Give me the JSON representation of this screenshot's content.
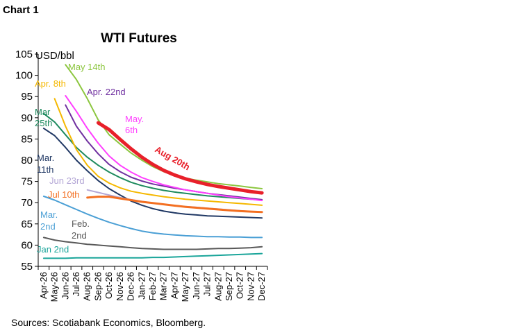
{
  "page": {
    "label": "Chart 1",
    "source": "Sources: Scotiabank Economics, Bloomberg."
  },
  "chart_data": {
    "type": "line",
    "title": "WTI Futures",
    "ylabel": "USD/bbl",
    "xlabel": "",
    "ylim": [
      55,
      105
    ],
    "yticks": [
      55,
      60,
      65,
      70,
      75,
      80,
      85,
      90,
      95,
      100,
      105
    ],
    "categories": [
      "Apr-26",
      "May-26",
      "Jun-26",
      "Jul-26",
      "Aug-26",
      "Sep-26",
      "Oct-26",
      "Nov-26",
      "Dec-26",
      "Jan-27",
      "Feb-27",
      "Mar-27",
      "Apr-27",
      "May-27",
      "Jun-27",
      "Jul-27",
      "Aug-27",
      "Sep-27",
      "Oct-27",
      "Nov-27",
      "Dec-27"
    ],
    "grid": false,
    "legend": "direct labels",
    "series": [
      {
        "name": "Jan 2nd",
        "color": "#1aa59a",
        "width": 2,
        "values": [
          56.9,
          56.9,
          56.9,
          57.0,
          57.0,
          57.0,
          57.0,
          57.0,
          57.0,
          57.0,
          57.1,
          57.1,
          57.2,
          57.3,
          57.4,
          57.5,
          57.6,
          57.7,
          57.8,
          57.9,
          58.0
        ]
      },
      {
        "name": "Feb. 2nd",
        "color": "#595959",
        "width": 2,
        "values": [
          61.8,
          61.2,
          60.8,
          60.5,
          60.2,
          60.0,
          59.8,
          59.6,
          59.4,
          59.2,
          59.1,
          59.0,
          59.0,
          59.0,
          59.0,
          59.1,
          59.2,
          59.2,
          59.3,
          59.4,
          59.6
        ]
      },
      {
        "name": "Mar. 2nd",
        "color": "#4a9fd5",
        "width": 2,
        "values": [
          71.5,
          70.6,
          69.5,
          68.4,
          67.3,
          66.3,
          65.4,
          64.6,
          63.9,
          63.3,
          62.9,
          62.6,
          62.4,
          62.2,
          62.1,
          62.0,
          62.0,
          61.9,
          61.9,
          61.8,
          61.8
        ]
      },
      {
        "name": "Mar. 11th",
        "color": "#203864",
        "width": 2,
        "values": [
          87.5,
          85.8,
          83.0,
          80.0,
          77.5,
          75.2,
          73.3,
          71.8,
          70.4,
          69.4,
          68.6,
          68.0,
          67.6,
          67.3,
          67.1,
          66.9,
          66.8,
          66.7,
          66.6,
          66.5,
          66.4
        ]
      },
      {
        "name": "Mar 25th",
        "color": "#1e8a5e",
        "width": 2,
        "values": [
          91.0,
          89.0,
          86.0,
          83.0,
          80.7,
          78.8,
          77.2,
          75.9,
          74.8,
          74.0,
          73.4,
          72.9,
          72.5,
          72.2,
          71.9,
          71.6,
          71.4,
          71.2,
          71.0,
          70.8,
          70.6
        ]
      },
      {
        "name": "Apr. 8th",
        "color": "#f5b800",
        "width": 2,
        "values": [
          null,
          94.5,
          88.0,
          82.5,
          78.8,
          76.2,
          74.6,
          73.5,
          72.7,
          72.2,
          71.8,
          71.4,
          71.1,
          70.8,
          70.6,
          70.4,
          70.2,
          70.0,
          69.8,
          69.6,
          69.4
        ]
      },
      {
        "name": "Apr. 22nd",
        "color": "#7030a0",
        "width": 2,
        "values": [
          null,
          null,
          93.0,
          88.0,
          84.5,
          81.5,
          79.0,
          77.3,
          76.0,
          75.1,
          74.4,
          73.9,
          73.4,
          73.0,
          72.6,
          72.2,
          71.9,
          71.6,
          71.3,
          71.0,
          70.7
        ]
      },
      {
        "name": "May. 6th",
        "color": "#ff40ff",
        "width": 2,
        "values": [
          null,
          null,
          95.2,
          91.5,
          87.5,
          84.0,
          81.0,
          78.8,
          77.2,
          75.9,
          75.0,
          74.2,
          73.6,
          73.0,
          72.6,
          72.2,
          71.8,
          71.4,
          71.1,
          70.8,
          70.5
        ]
      },
      {
        "name": "May 14th",
        "color": "#8cc63f",
        "width": 2,
        "values": [
          null,
          null,
          102.5,
          99.0,
          94.5,
          89.5,
          86.0,
          83.8,
          81.7,
          80.0,
          78.5,
          77.3,
          76.5,
          75.8,
          75.3,
          74.9,
          74.5,
          74.2,
          73.9,
          73.6,
          73.3
        ]
      },
      {
        "name": "Jun 23rd",
        "color": "#b4a7d6",
        "width": 2,
        "values": [
          null,
          null,
          null,
          null,
          73.0,
          72.4,
          71.8,
          71.2,
          70.7,
          70.3,
          69.9,
          69.6,
          69.3,
          69.1,
          68.9,
          68.7,
          68.5,
          68.3,
          68.1,
          67.9,
          67.8
        ]
      },
      {
        "name": "Jul 10th",
        "color": "#f36f21",
        "width": 3,
        "values": [
          null,
          null,
          null,
          null,
          71.2,
          71.4,
          71.4,
          71.0,
          70.6,
          70.2,
          69.9,
          69.6,
          69.3,
          69.0,
          68.8,
          68.6,
          68.4,
          68.2,
          68.0,
          67.9,
          67.8
        ]
      },
      {
        "name": "Aug 20th",
        "color": "#e8202a",
        "width": 5,
        "values": [
          null,
          null,
          null,
          null,
          null,
          88.8,
          87.2,
          84.9,
          82.7,
          80.7,
          79.0,
          77.6,
          76.5,
          75.6,
          74.9,
          74.3,
          73.8,
          73.4,
          73.0,
          72.6,
          72.3
        ]
      }
    ],
    "labels": [
      {
        "series": "May 14th",
        "lines": [
          "May 14th"
        ]
      },
      {
        "series": "Apr. 8th",
        "lines": [
          "Apr. 8th"
        ]
      },
      {
        "series": "Apr. 22nd",
        "lines": [
          "Apr. 22nd"
        ]
      },
      {
        "series": "Mar 25th",
        "lines": [
          "Mar",
          "25th"
        ]
      },
      {
        "series": "May. 6th",
        "lines": [
          "May.",
          "6th"
        ]
      },
      {
        "series": "Aug 20th",
        "lines": [
          "Aug 20th"
        ]
      },
      {
        "series": "Mar. 11th",
        "lines": [
          "Mar.",
          "11th"
        ]
      },
      {
        "series": "Jun 23rd",
        "lines": [
          "Jun 23rd"
        ]
      },
      {
        "series": "Jul 10th",
        "lines": [
          "Jul 10th"
        ]
      },
      {
        "series": "Mar. 2nd",
        "lines": [
          "Mar.",
          "2nd"
        ]
      },
      {
        "series": "Feb. 2nd",
        "lines": [
          "Feb.",
          "2nd"
        ]
      },
      {
        "series": "Jan 2nd",
        "lines": [
          "Jan 2nd"
        ]
      }
    ]
  }
}
